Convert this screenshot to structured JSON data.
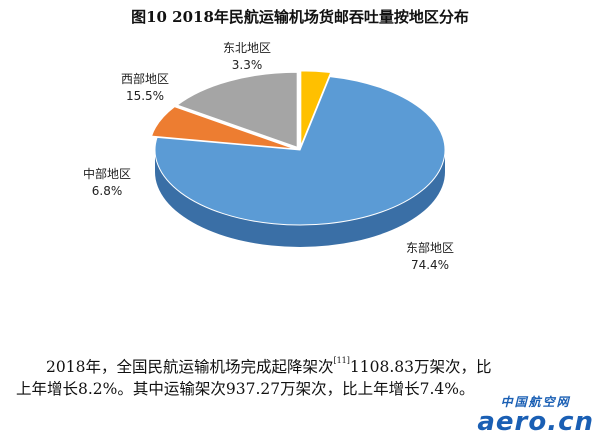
{
  "figure": {
    "title": "图10   2018年民航运输机场货邮吞吐量按地区分布"
  },
  "chart_data": {
    "type": "pie",
    "title": "图10   2018年民航运输机场货邮吞吐量按地区分布",
    "start_angle_deg": -90,
    "slices": [
      {
        "name": "东北地区",
        "value": 3.3,
        "label": "3.3%",
        "color": "#ffc000",
        "side": "#c59400",
        "explode": 8
      },
      {
        "name": "东部地区",
        "value": 74.4,
        "label": "74.4%",
        "color": "#5b9bd5",
        "side": "#3a6fa6",
        "explode": 0
      },
      {
        "name": "中部地区",
        "value": 6.8,
        "label": "6.8%",
        "color": "#ed7d31",
        "side": "#b0561c",
        "explode": 6
      },
      {
        "name": "西部地区",
        "value": 15.5,
        "label": "15.5%",
        "color": "#a5a5a5",
        "side": "#7a7a7a",
        "explode": 6
      }
    ]
  },
  "body_text": {
    "line1_a": "2018年，全国民航运输机场完成起降架次",
    "line1_ref": "[11]",
    "line1_b": "1108.83万架次，比",
    "line2": "上年增长8.2%。其中运输架次937.27万架次，比上年增长7.4%。"
  },
  "watermark": {
    "cn": "中国航空网",
    "en": "aero.cn"
  }
}
